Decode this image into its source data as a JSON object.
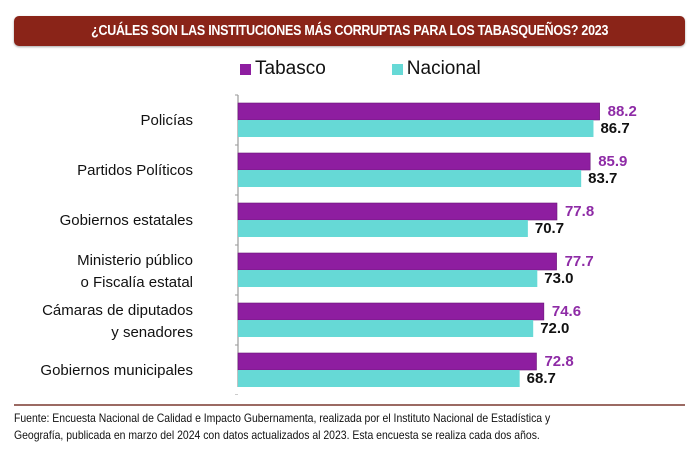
{
  "header": {
    "title": "¿CUÁLES SON LAS INSTITUCIONES MÁS CORRUPTAS PARA LOS TABASQUEÑOS? 2023"
  },
  "legend": [
    {
      "label": "Tabasco",
      "color": "#8e1ea0"
    },
    {
      "label": "Nacional",
      "color": "#66d9d6"
    }
  ],
  "footer": {
    "line1": "Fuente: Encuesta Nacional de Calidad e Impacto Gubernamenta, realizada por el Instituto Nacional de Estadística y",
    "line2": "Geografía, publicada en marzo del 2024 con datos actualizados al 2023. Esta encuesta se realiza cada dos años."
  },
  "chart_data": {
    "type": "bar",
    "orientation": "horizontal",
    "title": "¿CUÁLES SON LAS INSTITUCIONES MÁS CORRUPTAS PARA LOS TABASQUEÑOS? 2023",
    "xlabel": "",
    "ylabel": "",
    "xlim": [
      0,
      100
    ],
    "grid": false,
    "legend_position": "top",
    "categories": [
      [
        "Policías"
      ],
      [
        "Partidos Políticos"
      ],
      [
        "Gobiernos estatales"
      ],
      [
        "Ministerio público",
        "o Fiscalía estatal"
      ],
      [
        "Cámaras de diputados",
        "y senadores"
      ],
      [
        "Gobiernos municipales"
      ]
    ],
    "series": [
      {
        "name": "Tabasco",
        "color": "#8e1ea0",
        "label_color": "#8e2ba6",
        "values": [
          88.2,
          85.9,
          77.8,
          77.7,
          74.6,
          72.8
        ]
      },
      {
        "name": "Nacional",
        "color": "#66d9d6",
        "label_color": "#111111",
        "values": [
          86.7,
          83.7,
          70.7,
          73.0,
          72.0,
          68.7
        ]
      }
    ]
  }
}
